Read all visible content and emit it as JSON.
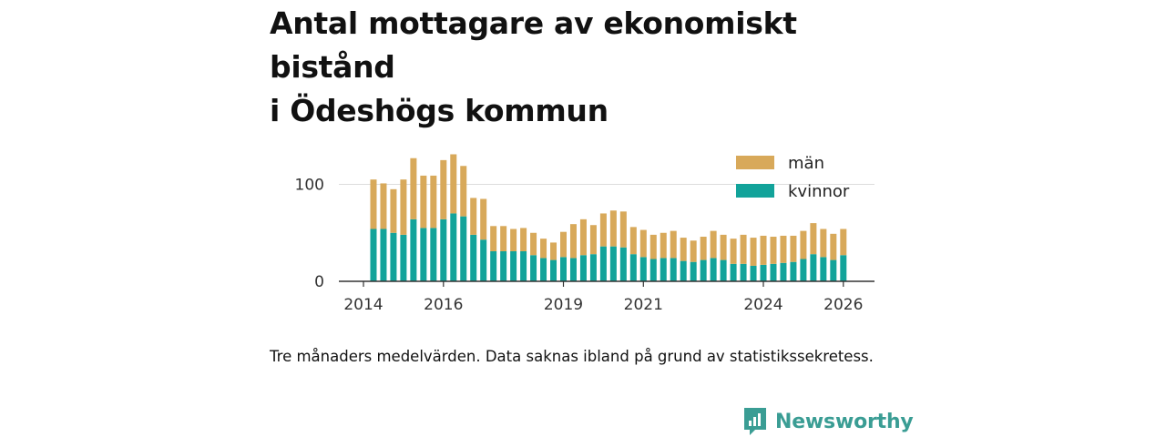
{
  "title_line1": "Antal mottagare av ekonomiskt bistånd",
  "title_line2": "i Ödeshögs kommun",
  "note": "Tre månaders medelvärden. Data saknas ibland på grund av statistikssekretess.",
  "brand": "Newsworthy",
  "colors": {
    "man": "#d8a95a",
    "kvinnor": "#12a39a",
    "brand": "#3a9d94"
  },
  "chart_data": {
    "type": "bar",
    "stacked": true,
    "title": "Antal mottagare av ekonomiskt bistånd i Ödeshögs kommun",
    "xlabel": "",
    "ylabel": "",
    "x_ticks": [
      "2014",
      "2016",
      "2019",
      "2021",
      "2024",
      "2026"
    ],
    "y_ticks": [
      "0",
      "100"
    ],
    "ylim": [
      0,
      140
    ],
    "legend_position": "top-right",
    "x": [
      2014.25,
      2014.5,
      2014.75,
      2015.0,
      2015.25,
      2015.5,
      2015.75,
      2016.0,
      2016.25,
      2016.5,
      2016.75,
      2017.0,
      2017.25,
      2017.5,
      2017.75,
      2018.0,
      2018.25,
      2018.5,
      2018.75,
      2019.0,
      2019.25,
      2019.5,
      2019.75,
      2020.0,
      2020.25,
      2020.5,
      2020.75,
      2021.0,
      2021.25,
      2021.5,
      2021.75,
      2022.0,
      2022.25,
      2022.5,
      2022.75,
      2023.0,
      2023.25,
      2023.5,
      2023.75,
      2024.0,
      2024.25,
      2024.5,
      2024.75,
      2025.0,
      2025.25,
      2025.5,
      2025.75,
      2026.0
    ],
    "series": [
      {
        "name": "kvinnor",
        "values": [
          54,
          54,
          50,
          48,
          64,
          55,
          55,
          64,
          70,
          67,
          48,
          43,
          31,
          31,
          31,
          31,
          27,
          24,
          22,
          25,
          24,
          27,
          28,
          36,
          36,
          35,
          28,
          25,
          23,
          24,
          24,
          21,
          20,
          22,
          24,
          22,
          18,
          18,
          16,
          17,
          18,
          19,
          20,
          23,
          28,
          25,
          22,
          27
        ]
      },
      {
        "name": "män",
        "values": [
          51,
          47,
          45,
          57,
          63,
          54,
          54,
          61,
          61,
          52,
          38,
          42,
          26,
          26,
          23,
          24,
          23,
          20,
          18,
          26,
          35,
          37,
          30,
          34,
          37,
          37,
          28,
          28,
          25,
          26,
          28,
          24,
          22,
          24,
          28,
          26,
          26,
          30,
          29,
          30,
          28,
          28,
          27,
          29,
          32,
          29,
          27,
          27
        ]
      }
    ]
  }
}
